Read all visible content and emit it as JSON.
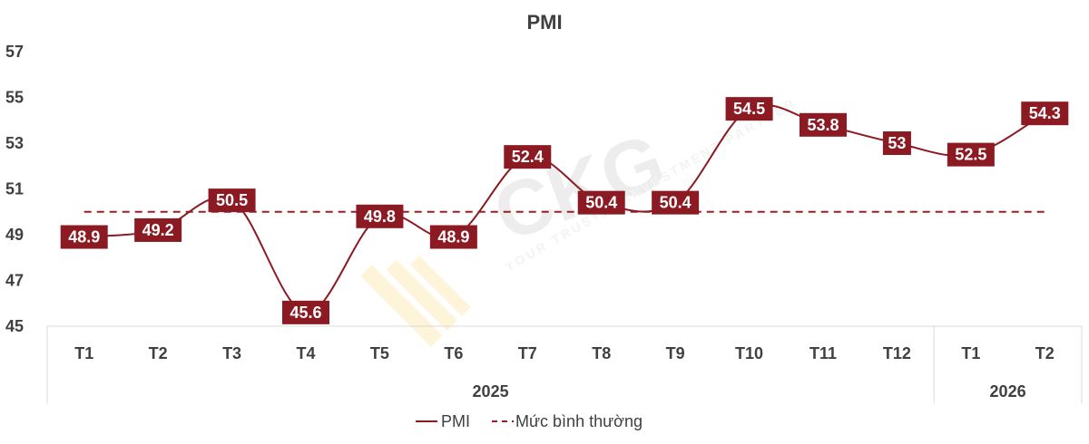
{
  "chart_data": {
    "type": "line",
    "title": "PMI",
    "xlabel": "",
    "ylabel": "",
    "ylim": [
      45,
      57
    ],
    "yticks": [
      45,
      47,
      49,
      51,
      53,
      55,
      57
    ],
    "categories": [
      "T1",
      "T2",
      "T3",
      "T4",
      "T5",
      "T6",
      "T7",
      "T8",
      "T9",
      "T10",
      "T11",
      "T12",
      "T1",
      "T2"
    ],
    "groups": [
      {
        "label": "2025",
        "count": 12
      },
      {
        "label": "2026",
        "count": 2
      }
    ],
    "series": [
      {
        "name": "PMI",
        "values": [
          48.9,
          49.2,
          50.5,
          45.6,
          49.8,
          48.9,
          52.4,
          50.4,
          50.4,
          54.5,
          53.8,
          53,
          52.5,
          54.3
        ],
        "color": "#8b1a22",
        "style": "solid-smooth",
        "data_labels": [
          "48.9",
          "49.2",
          "50.5",
          "45.6",
          "49.8",
          "48.9",
          "52.4",
          "50.4",
          "50.4",
          "54.5",
          "53.8",
          "53",
          "52.5",
          "54.3"
        ]
      },
      {
        "name": "Mức bình thường",
        "values": [
          50,
          50,
          50,
          50,
          50,
          50,
          50,
          50,
          50,
          50,
          50,
          50,
          50,
          50
        ],
        "color": "#a01c25",
        "style": "dashed"
      }
    ],
    "grid": false,
    "legend": "bottom"
  },
  "watermark": {
    "text": "CKG",
    "tagline": "YOUR TRUSTED INVESTMENT PARTNER"
  },
  "colors": {
    "label_bg": "#8b1a22",
    "axis_text": "#404040",
    "axis_line": "#d9d9d9"
  }
}
